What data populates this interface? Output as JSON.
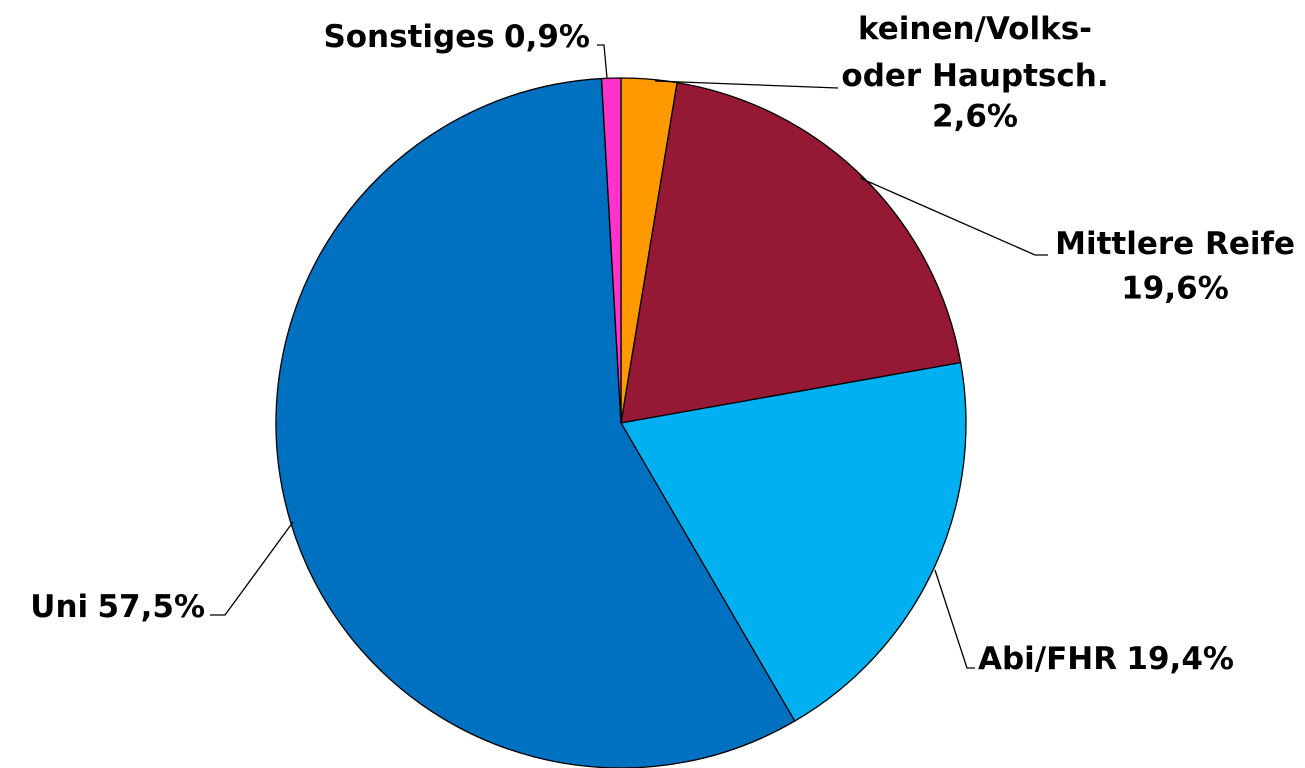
{
  "chart_data": {
    "type": "pie",
    "categories": [
      [
        "keinen/Volks-",
        "oder Hauptsch."
      ],
      [
        "Mittlere Reife"
      ],
      [
        "Abi/FHR"
      ],
      [
        "Uni"
      ],
      [
        "Sonstiges"
      ]
    ],
    "values": [
      2.6,
      19.6,
      19.4,
      57.5,
      0.9
    ],
    "value_labels": [
      "2,6%",
      "19,6%",
      "19,4%",
      "57,5%",
      "0,9%"
    ],
    "colors": [
      "#FF9900",
      "#951834",
      "#00B0F0",
      "#0070C0",
      "#FF33CC"
    ]
  }
}
